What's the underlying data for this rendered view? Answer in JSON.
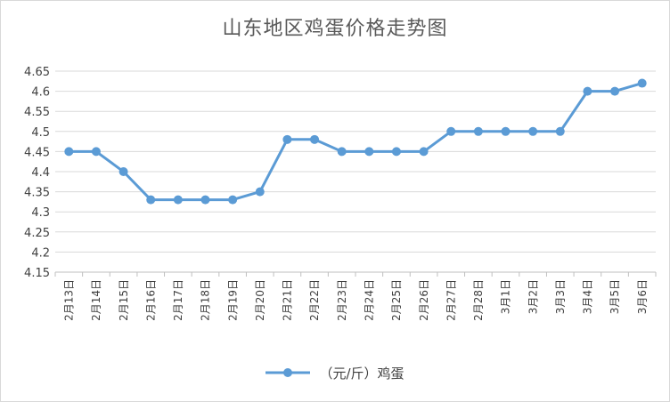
{
  "chart_data": {
    "type": "line",
    "title": "山东地区鸡蛋价格走势图",
    "categories": [
      "2月13日",
      "2月14日",
      "2月15日",
      "2月16日",
      "2月17日",
      "2月18日",
      "2月19日",
      "2月20日",
      "2月21日",
      "2月22日",
      "2月23日",
      "2月24日",
      "2月25日",
      "2月26日",
      "2月27日",
      "2月28日",
      "3月1日",
      "3月2日",
      "3月3日",
      "3月4日",
      "3月5日",
      "3月6日"
    ],
    "series": [
      {
        "name": "（元/斤）鸡蛋",
        "values": [
          4.45,
          4.45,
          4.4,
          4.33,
          4.33,
          4.33,
          4.33,
          4.35,
          4.48,
          4.48,
          4.45,
          4.45,
          4.45,
          4.45,
          4.5,
          4.5,
          4.5,
          4.5,
          4.5,
          4.6,
          4.6,
          4.62
        ],
        "color": "#5b9bd5"
      }
    ],
    "yticks": [
      "4.15",
      "4.2",
      "4.25",
      "4.3",
      "4.35",
      "4.4",
      "4.45",
      "4.5",
      "4.55",
      "4.6",
      "4.65"
    ],
    "ylim": [
      4.15,
      4.65
    ],
    "grid": true,
    "legend_position": "bottom"
  }
}
